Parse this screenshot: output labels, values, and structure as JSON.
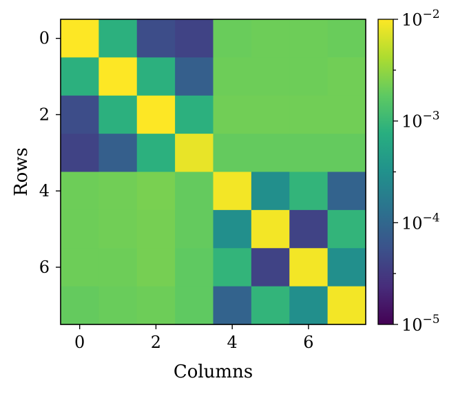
{
  "chart_data": {
    "type": "heatmap",
    "xlabel": "Columns",
    "ylabel": "Rows",
    "x_ticks": [
      0,
      2,
      4,
      6
    ],
    "y_ticks": [
      0,
      2,
      4,
      6
    ],
    "rows": [
      0,
      1,
      2,
      3,
      4,
      5,
      6,
      7
    ],
    "columns": [
      0,
      1,
      2,
      3,
      4,
      5,
      6,
      7
    ],
    "values": [
      [
        0.01,
        0.0008,
        5e-05,
        4e-05,
        0.002,
        0.0021,
        0.0021,
        0.002
      ],
      [
        0.0008,
        0.01,
        0.0008,
        8e-05,
        0.0021,
        0.0021,
        0.0021,
        0.0022
      ],
      [
        5e-05,
        0.0008,
        0.01,
        0.0008,
        0.0022,
        0.0022,
        0.0022,
        0.0022
      ],
      [
        4e-05,
        8e-05,
        0.0008,
        0.008,
        0.0019,
        0.0019,
        0.0019,
        0.0019
      ],
      [
        0.0021,
        0.0022,
        0.0024,
        0.0019,
        0.009,
        0.0003,
        0.0009,
        9e-05
      ],
      [
        0.0021,
        0.0022,
        0.0023,
        0.0019,
        0.0003,
        0.009,
        4e-05,
        0.0009
      ],
      [
        0.0021,
        0.0021,
        0.0023,
        0.0018,
        0.0009,
        4e-05,
        0.009,
        0.0003
      ],
      [
        0.0019,
        0.002,
        0.0021,
        0.0018,
        9e-05,
        0.0009,
        0.0003,
        0.009
      ]
    ],
    "colormap": "viridis",
    "color_scale": "log",
    "colorbar_range": [
      1e-05,
      0.01
    ],
    "colorbar_ticks": [
      {
        "base": "10",
        "exp": "−5"
      },
      {
        "base": "10",
        "exp": "−4"
      },
      {
        "base": "10",
        "exp": "−3"
      },
      {
        "base": "10",
        "exp": "−2"
      }
    ]
  }
}
